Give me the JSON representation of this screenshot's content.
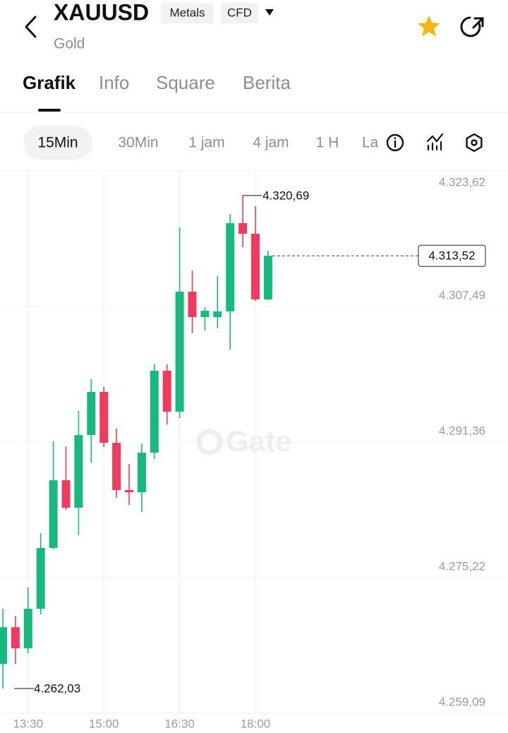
{
  "header": {
    "symbol": "XAUUSD",
    "tags": [
      "Metals",
      "CFD"
    ],
    "subtitle": "Gold"
  },
  "tabs": {
    "items": [
      "Grafik",
      "Info",
      "Square",
      "Berita"
    ],
    "active": 0
  },
  "intervals": {
    "items": [
      "15Min",
      "30Min",
      "1 jam",
      "4 jam",
      "1 H",
      "La"
    ],
    "active": 0
  },
  "chart_data": {
    "type": "candlestick",
    "categories": [
      null,
      null,
      "13:30",
      null,
      null,
      null,
      null,
      null,
      "15:00",
      null,
      null,
      null,
      null,
      null,
      "16:30",
      null,
      null,
      null,
      null,
      null,
      "18:00",
      null
    ],
    "open": [
      4264.96,
      4269.33,
      4266.81,
      4271.52,
      4278.75,
      4286.81,
      4283.54,
      4292.19,
      4297.32,
      4291.27,
      4285.64,
      4285.38,
      4290.09,
      4299.84,
      4294.96,
      4309.25,
      4306.22,
      4306.22,
      4306.9,
      4317.4,
      4316.14,
      4308.33
    ],
    "high": [
      4271.52,
      4270.67,
      4274.04,
      4280.51,
      4291.44,
      4290.85,
      4295.05,
      4298.83,
      4297.91,
      4292.95,
      4288.75,
      4291.18,
      4300.6,
      4300.6,
      4316.9,
      4311.77,
      4307.4,
      4311.1,
      4318.49,
      4320.69,
      4319.42,
      4314.12
    ],
    "low": [
      4262.03,
      4264.96,
      4266.22,
      4270.85,
      4278.6,
      4283.28,
      4280.26,
      4288.91,
      4290.76,
      4284.71,
      4283.87,
      4283.03,
      4289.34,
      4293.45,
      4294.21,
      4304.29,
      4304.63,
      4304.88,
      4302.36,
      4314.54,
      4308.16,
      4308.25
    ],
    "close": [
      4269.33,
      4266.81,
      4271.52,
      4278.75,
      4286.81,
      4283.54,
      4292.19,
      4297.32,
      4291.27,
      4285.64,
      4285.38,
      4290.09,
      4299.84,
      4294.96,
      4309.25,
      4306.22,
      4306.98,
      4306.9,
      4317.4,
      4316.14,
      4308.33,
      4313.52
    ],
    "up_color": "#16ba7e",
    "down_color": "#f13a5e",
    "ylim": [
      4259.09,
      4323.62
    ],
    "yticks": [
      {
        "value": 4323.62,
        "label": "4.323,62"
      },
      {
        "value": 4307.49,
        "label": "4.307,49"
      },
      {
        "value": 4291.36,
        "label": "4.291,36"
      },
      {
        "value": 4275.22,
        "label": "4.275,22"
      },
      {
        "value": 4259.09,
        "label": "4.259,09"
      }
    ],
    "grid": true,
    "high_label": {
      "value": 4320.69,
      "label": "4.320,69"
    },
    "low_label": {
      "value": 4262.03,
      "label": "4.262,03"
    },
    "last_price": {
      "value": 4313.52,
      "label": "4.313,52"
    },
    "watermark": "Gate"
  }
}
